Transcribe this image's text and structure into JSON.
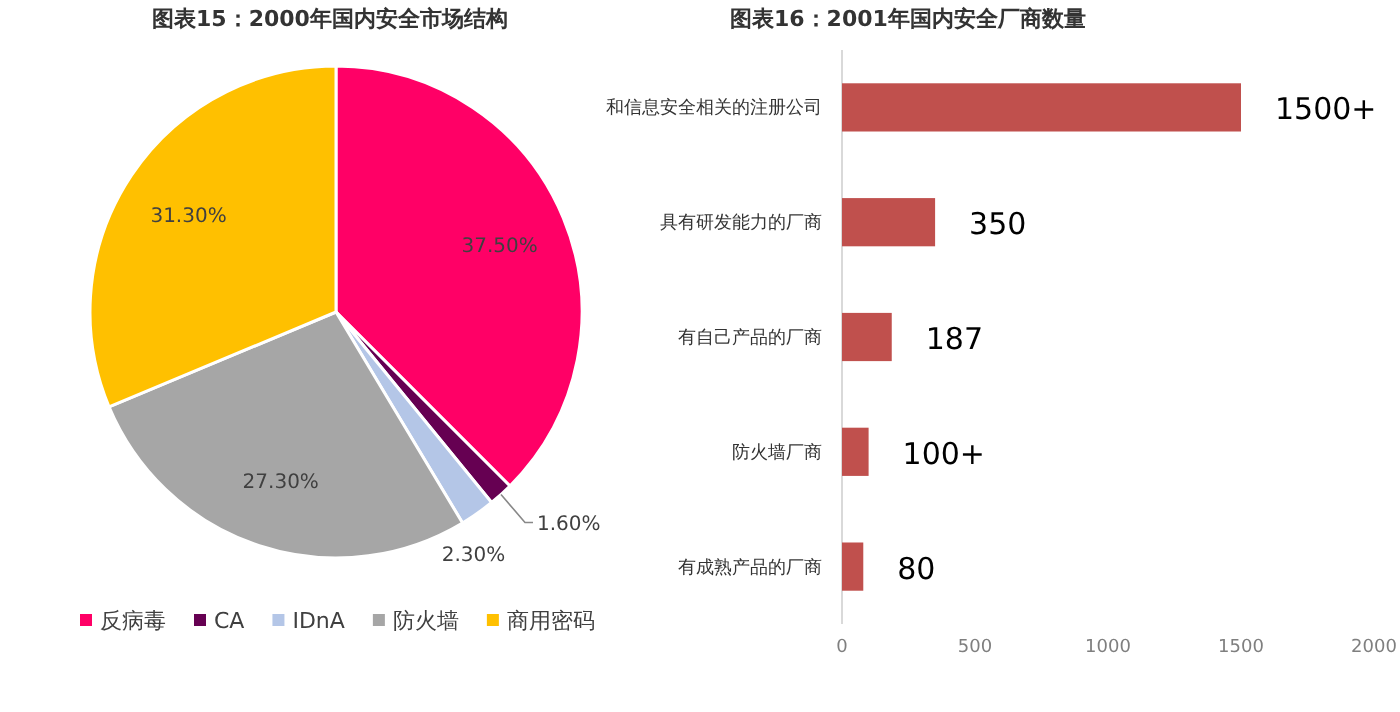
{
  "chart_data": [
    {
      "type": "pie",
      "title": "图表15：2000年国内安全市场结构",
      "categories": [
        "反病毒",
        "CA",
        "IDnA",
        "防火墙",
        "商用密码"
      ],
      "values": [
        37.5,
        1.6,
        2.3,
        27.3,
        31.3
      ],
      "colors": [
        "#ff0066",
        "#660052",
        "#b4c6e7",
        "#a6a6a6",
        "#ffc000"
      ],
      "value_labels": [
        "37.50%",
        "1.60%",
        "2.30%",
        "27.30%",
        "31.30%"
      ],
      "legend": "bottom"
    },
    {
      "type": "bar",
      "orientation": "horizontal",
      "title": "图表16：2001年国内安全厂商数量",
      "categories": [
        "和信息安全相关的注册公司",
        "具有研发能力的厂商",
        "有自己产品的厂商",
        "防火墙厂商",
        "有成熟产品的厂商"
      ],
      "values": [
        1500,
        350,
        187,
        100,
        80
      ],
      "value_labels": [
        "1500+",
        "350",
        "187",
        "100+",
        "80"
      ],
      "color": "#c0504d",
      "xlim": [
        0,
        2000
      ],
      "xticks": [
        0,
        500,
        1000,
        1500,
        2000
      ],
      "grid": false
    }
  ]
}
